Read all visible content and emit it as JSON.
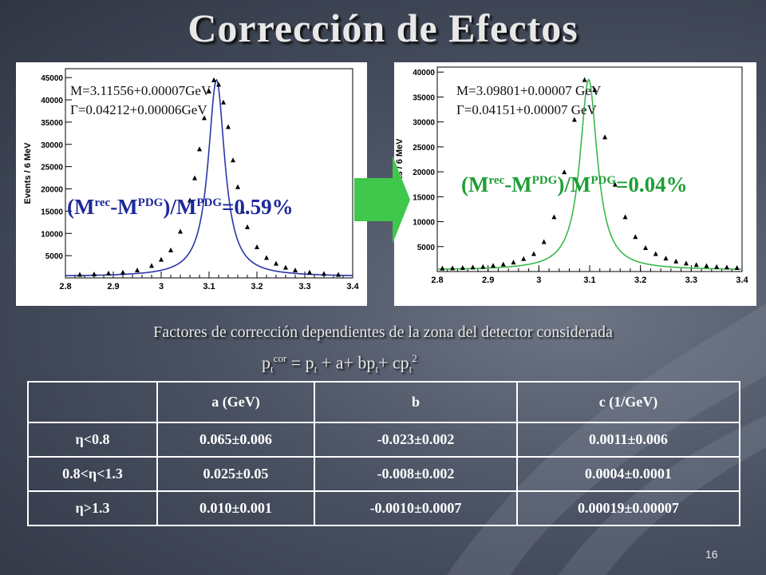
{
  "slide": {
    "title": "Corrección de Efectos",
    "subtitle": "Factores de corrección dependientes de la zona del detector considerada",
    "formula": {
      "p": "p",
      "t": "t",
      "cor": "cor",
      "eq": " = p",
      "plus": " + a+ bp",
      "plus2": "+ cp",
      "sq": "2"
    },
    "page_number": "16"
  },
  "left_plot": {
    "fit_mass": "M=3.11556+0.00007GeV",
    "fit_width_sym": "Γ",
    "fit_width": "=0.04212+0.00006GeV",
    "ratio": {
      "a": "(M",
      "rec": "rec",
      "b": "-M",
      "pdg1": "PDG",
      "c": ")/M",
      "pdg2": "PDG",
      "d": "=0.59%"
    },
    "color": "#2b35a8"
  },
  "right_plot": {
    "fit_mass": "M=3.09801+0.00007  GeV",
    "fit_width_sym": "Γ",
    "fit_width": "=0.04151+0.00007  GeV",
    "ratio": {
      "a": "(M",
      "rec": "rec",
      "b": "-M",
      "pdg1": "PDG",
      "c": ")/M",
      "pdg2": "PDG",
      "d": "=0.04%"
    },
    "color": "#39b84a"
  },
  "table": {
    "headers": [
      "",
      "a (GeV)",
      "b",
      "c (1/GeV)"
    ],
    "rows": [
      [
        "η<0.8",
        "0.065±0.006",
        "-0.023±0.002",
        "0.0011±0.006"
      ],
      [
        "0.8<η<1.3",
        "0.025±0.05",
        "-0.008±0.002",
        "0.0004±0.0001"
      ],
      [
        "η>1.3",
        "0.010±0.001",
        "-0.0010±0.0007",
        "0.00019±0.00007"
      ]
    ]
  },
  "chart_data": [
    {
      "type": "scatter",
      "title": "",
      "ylabel": "Events / 6 MeV",
      "xlabel": "",
      "xlim": [
        2.8,
        3.4
      ],
      "ylim": [
        0,
        47000
      ],
      "xticks": [
        "2.8",
        "2.9",
        "3",
        "3.1",
        "3.2",
        "3.3",
        "3.4"
      ],
      "yticks": [
        "5000",
        "10000",
        "15000",
        "20000",
        "25000",
        "30000",
        "35000",
        "40000",
        "45000"
      ],
      "fit": {
        "mass": 3.11556,
        "width": 0.04212,
        "peak": 44500,
        "background": 300
      },
      "series": [
        {
          "x": [
            2.83,
            2.86,
            2.89,
            2.92,
            2.95,
            2.98,
            3.0,
            3.02,
            3.04,
            3.06,
            3.07,
            3.08,
            3.09,
            3.1,
            3.11,
            3.12,
            3.13,
            3.14,
            3.15,
            3.16,
            3.17,
            3.18,
            3.2,
            3.22,
            3.24,
            3.26,
            3.28,
            3.31,
            3.34,
            3.37
          ],
          "y": [
            800,
            900,
            1100,
            1300,
            1800,
            2800,
            4200,
            6300,
            10500,
            17500,
            22500,
            29000,
            36000,
            42000,
            44500,
            43500,
            39500,
            34000,
            26500,
            20500,
            15000,
            11500,
            7000,
            4600,
            3300,
            2400,
            1800,
            1300,
            1000,
            800
          ]
        }
      ]
    },
    {
      "type": "scatter",
      "title": "",
      "ylabel": "Events / 6 MeV",
      "xlabel": "",
      "xlim": [
        2.8,
        3.4
      ],
      "ylim": [
        0,
        41000
      ],
      "xticks": [
        "2.8",
        "2.9",
        "3",
        "3.1",
        "3.2",
        "3.3",
        "3.4"
      ],
      "yticks": [
        "5000",
        "10000",
        "15000",
        "20000",
        "25000",
        "30000",
        "35000",
        "40000"
      ],
      "fit": {
        "mass": 3.09801,
        "width": 0.04151,
        "peak": 38500,
        "background": 300
      },
      "series": [
        {
          "x": [
            2.81,
            2.83,
            2.85,
            2.87,
            2.89,
            2.91,
            2.93,
            2.95,
            2.97,
            2.99,
            3.01,
            3.03,
            3.05,
            3.07,
            3.09,
            3.11,
            3.13,
            3.15,
            3.17,
            3.19,
            3.21,
            3.23,
            3.25,
            3.27,
            3.29,
            3.31,
            3.33,
            3.35,
            3.37,
            3.39
          ],
          "y": [
            700,
            750,
            800,
            900,
            1000,
            1250,
            1500,
            1900,
            2600,
            3600,
            6000,
            11000,
            20000,
            30500,
            38500,
            36500,
            27000,
            17500,
            11000,
            7000,
            4800,
            3600,
            2700,
            2100,
            1700,
            1400,
            1200,
            1000,
            900,
            800
          ]
        }
      ]
    }
  ]
}
